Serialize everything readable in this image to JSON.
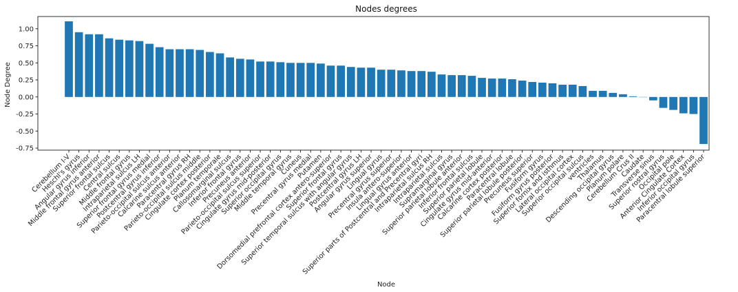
{
  "chart_data": {
    "type": "bar",
    "title": "Nodes degrees",
    "xlabel": "Node",
    "ylabel": "Node Degree",
    "ylim": [
      -0.78,
      1.18
    ],
    "yticks": [
      "1.00",
      "0.75",
      "0.50",
      "0.25",
      "0.00",
      "-0.25",
      "-0.50",
      "-0.75"
    ],
    "grid": false,
    "bar_color": "#1f77b4",
    "categories": [
      "Cerebellum I-V",
      "Heschl's gyrus",
      "Angular gyrus inferior",
      "Middle frontal gyrus anterior",
      "Superior frontal sulcus",
      "Central sulcus",
      "Middle frontal gyrus",
      "Intraparietal sulcus LH",
      "Superior frontal gyrus medial",
      "Postcentral gyrus inferior",
      "Parieto-occipital sulcus anterior",
      "Calcarine sulcus anterior",
      "Paracentral gyrus RH",
      "Parieto-occipital sulcus middle",
      "Cingulate cortex posterior",
      "Planum temporale",
      "Callosomarginal sulcus",
      "Inferior frontal gyrus",
      "Precuneus anterior",
      "Parieto-occipital sulcus superior",
      "Cingulate gyrus mid-posterior",
      "Superior occipital gyrus",
      "Middle temporal gyrus",
      "Cuneus",
      "Precentral gyrus medial",
      "Putamen",
      "Dorsomedial prefrontal cortex antero-superior",
      "Superior frontal gyrus",
      "Superior temporal sulcus with angular gyrus",
      "Postcentral gyrus LH",
      "Angular gyrus superior",
      "Lingual gyrus",
      "Precentral gyrus superior",
      "Insula antero-superior",
      "Lingual gyrus anterior",
      "Superior parts of Postcentral and Precentral gyri",
      "Intraparietal sulcus RH",
      "Intraparietal sulcus",
      "Supramarginal gyrus",
      "Superior parietal lobule anterior",
      "Inferior frontal sulcus",
      "Superior parietal lobule",
      "Cingulate gyrus mid-anterior",
      "Calcarine cortex posterior",
      "Paracentral lobule",
      "Superior parietal lobule posterior",
      "Precuneus superior",
      "Fusiform gyrus",
      "Fusiform gyrus posterior",
      "Superior fornix and isthmus",
      "Lateral occipital cortex",
      "Superior occipital sulcus",
      "ventricles",
      "Thalamus",
      "Descending occipital gyrus",
      "Planum polare",
      "Cerebellum Crus II",
      "Caudate",
      "Transverse sinus",
      "Superior rostral gyrus",
      "Occipital pole",
      "Anterior Cingulate Cortex",
      "Inferior occipital gyrus",
      "Paracentral lobule superior"
    ],
    "values": [
      1.11,
      0.95,
      0.92,
      0.92,
      0.86,
      0.84,
      0.83,
      0.82,
      0.78,
      0.73,
      0.7,
      0.7,
      0.7,
      0.69,
      0.66,
      0.64,
      0.58,
      0.56,
      0.55,
      0.52,
      0.52,
      0.51,
      0.5,
      0.5,
      0.5,
      0.49,
      0.46,
      0.46,
      0.44,
      0.43,
      0.43,
      0.4,
      0.4,
      0.39,
      0.38,
      0.38,
      0.37,
      0.33,
      0.32,
      0.32,
      0.31,
      0.28,
      0.27,
      0.27,
      0.26,
      0.24,
      0.22,
      0.21,
      0.2,
      0.18,
      0.18,
      0.16,
      0.09,
      0.09,
      0.06,
      0.04,
      0.01,
      0.0,
      -0.05,
      -0.16,
      -0.19,
      -0.24,
      -0.25,
      -0.69
    ]
  }
}
